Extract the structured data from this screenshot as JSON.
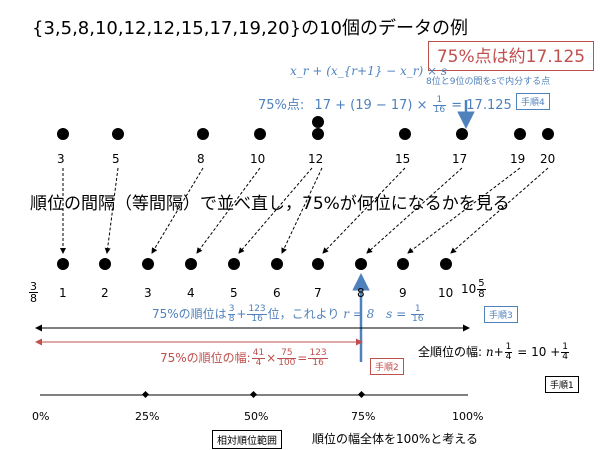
{
  "title": "{3,5,8,10,12,12,15,17,19,20}の10個のデータの例",
  "result": "75%点は約17.125",
  "formula_general": "x_r + (x_{r+1} − x_r) × s",
  "note_interp": "8位と9位の間をsで内分する点",
  "formula75": {
    "label": "75%点:",
    "expr_pre": "17 + (19 − 17) ×",
    "frac_num": "1",
    "frac_den": "16",
    "expr_post": "= 17.125"
  },
  "steps": {
    "step1": "手順1",
    "step2": "手順2",
    "step3": "手順3",
    "step4": "手順4"
  },
  "data_values": [
    "3",
    "5",
    "8",
    "10",
    "12",
    "12",
    "15",
    "17",
    "19",
    "20"
  ],
  "rank_start": {
    "num": "3",
    "den": "8"
  },
  "rank_labels": [
    "1",
    "2",
    "3",
    "4",
    "5",
    "6",
    "7",
    "8",
    "9",
    "10"
  ],
  "rank_end": {
    "whole": "10",
    "num": "5",
    "den": "8"
  },
  "middle_text": "順位の間隔（等間隔）で並べ直し，75%が何位になるかを見る",
  "rank75": {
    "prefix": "75%の順位は",
    "f1_num": "3",
    "f1_den": "8",
    "plus": "+",
    "f2_num": "123",
    "f2_den": "16",
    "mid": "位，これより",
    "r_expr": "r = 8",
    "s_expr": "s =",
    "s_num": "1",
    "s_den": "16"
  },
  "width75": {
    "prefix": "75%の順位の幅:",
    "f1_num": "41",
    "f1_den": "4",
    "times": "×",
    "f2_num": "75",
    "f2_den": "100",
    "eq": "=",
    "f3_num": "123",
    "f3_den": "16"
  },
  "total_width": {
    "prefix": "全順位の幅:",
    "n": "n",
    "plus": "+",
    "f_num": "1",
    "f_den": "4",
    "eq": "= 10 +",
    "f2_num": "1",
    "f2_den": "4"
  },
  "percent_labels": [
    "0%",
    "25%",
    "50%",
    "75%",
    "100%"
  ],
  "footer_box": "相対順位範囲",
  "footer_text": "順位の幅全体を100%と考える",
  "colors": {
    "blue": "#4f81bd",
    "red": "#c0504d",
    "black": "#000000"
  }
}
